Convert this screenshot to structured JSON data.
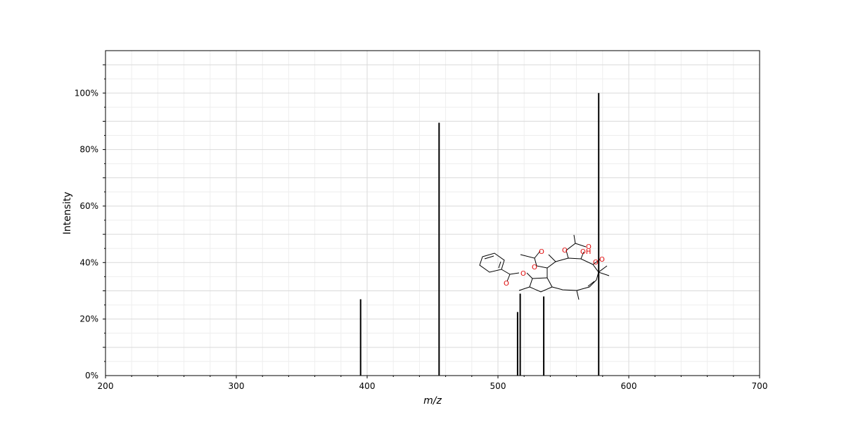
{
  "chart_data": {
    "type": "bar",
    "title": "",
    "xlabel": "m/z",
    "ylabel": "Intensity",
    "xlim": [
      200,
      700
    ],
    "ylim": [
      0,
      115
    ],
    "x_ticks": [
      200,
      300,
      400,
      500,
      600,
      700
    ],
    "y_ticks": [
      0,
      20,
      40,
      60,
      80,
      100
    ],
    "y_tick_labels": [
      "0%",
      "20%",
      "40%",
      "60%",
      "80%",
      "100%"
    ],
    "grid": true,
    "peaks": [
      {
        "mz": 395,
        "intensity": 27
      },
      {
        "mz": 455,
        "intensity": 89.5
      },
      {
        "mz": 515,
        "intensity": 22.5
      },
      {
        "mz": 517,
        "intensity": 29
      },
      {
        "mz": 535,
        "intensity": 28
      },
      {
        "mz": 577,
        "intensity": 100
      }
    ],
    "structure_atom_labels": [
      "O",
      "O",
      "O",
      "O",
      "O",
      "O",
      "O",
      "OH",
      "O"
    ],
    "colors": {
      "peak": "#000000",
      "heteroatom": "#e00000"
    }
  }
}
